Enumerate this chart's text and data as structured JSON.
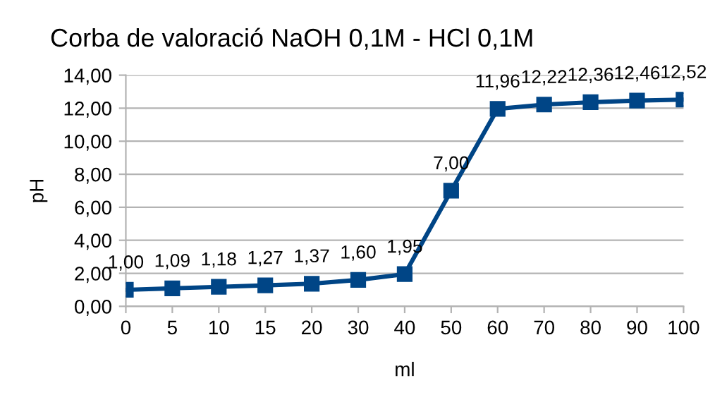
{
  "chart_data": {
    "type": "line",
    "title": "Corba de valoració NaOH 0,1M - HCl 0,1M",
    "xlabel": "ml",
    "ylabel": "pH",
    "categories": [
      "0",
      "5",
      "10",
      "15",
      "20",
      "30",
      "40",
      "50",
      "60",
      "70",
      "80",
      "90",
      "100"
    ],
    "series": [
      {
        "color": "#004586",
        "values": [
          1.0,
          1.09,
          1.18,
          1.27,
          1.37,
          1.6,
          1.95,
          7.0,
          11.96,
          12.22,
          12.36,
          12.46,
          12.52
        ],
        "value_labels": [
          "1,00",
          "1,09",
          "1,18",
          "1,27",
          "1,37",
          "1,60",
          "1,95",
          "7,00",
          "11,96",
          "12,22",
          "12,36",
          "12,46",
          "12,52"
        ]
      }
    ],
    "ylim": [
      0,
      14
    ],
    "yticks": [
      {
        "value": 0,
        "label": "0,00"
      },
      {
        "value": 2,
        "label": "2,00"
      },
      {
        "value": 4,
        "label": "4,00"
      },
      {
        "value": 6,
        "label": "6,00"
      },
      {
        "value": 8,
        "label": "8,00"
      },
      {
        "value": 10,
        "label": "10,00"
      },
      {
        "value": 12,
        "label": "12,00"
      },
      {
        "value": 14,
        "label": "14,00"
      }
    ],
    "grid": "y",
    "marker": "square",
    "line_style": "solid",
    "legend": false
  }
}
